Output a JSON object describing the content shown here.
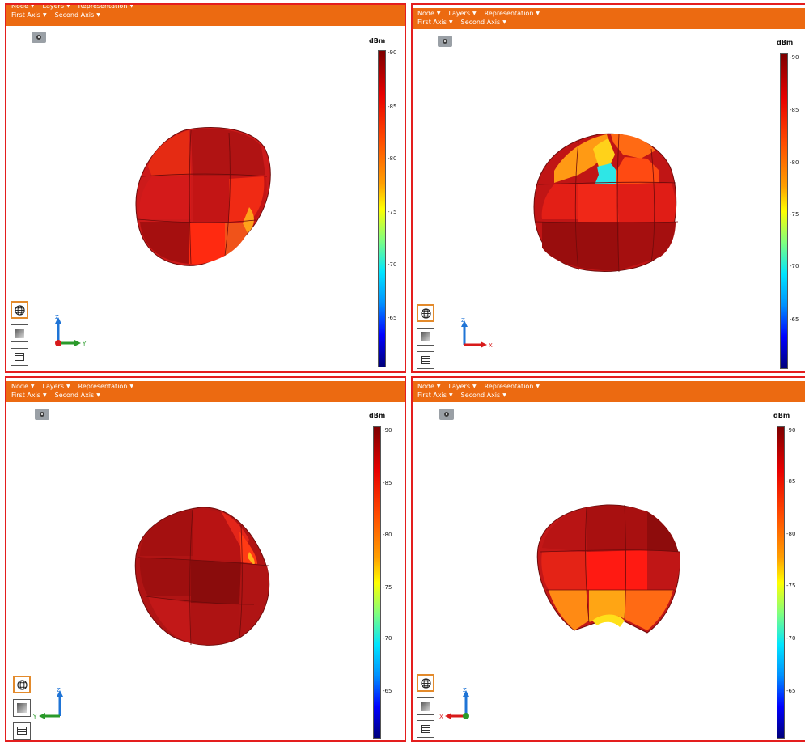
{
  "toolbar": {
    "node_label": "Node",
    "layers_label": "Layers",
    "representation_label": "Representation",
    "first_axis_label": "First Axis",
    "second_axis_label": "Second Axis"
  },
  "colorbar": {
    "unit": "dBm",
    "ticks": [
      "-90",
      "-85",
      "-80",
      "-75",
      "-70",
      "-65"
    ]
  },
  "axes": {
    "z": "Z",
    "y": "Y",
    "x": "X"
  },
  "icons": {
    "camera": "camera-icon",
    "globe": "globe-icon",
    "surface": "surface-icon",
    "table": "table-icon"
  },
  "colors": {
    "toolbar": "#ec6a11",
    "panel_border": "#e41e1e",
    "active_button_border": "#e38a2b"
  }
}
